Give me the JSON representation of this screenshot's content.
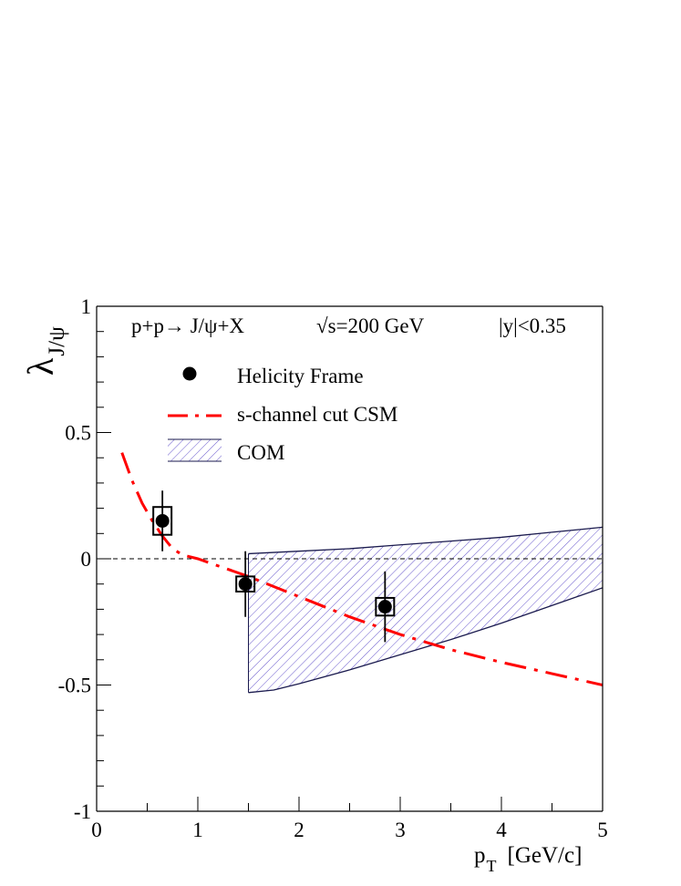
{
  "chart_data": {
    "type": "scatter",
    "title": "",
    "xlabel": {
      "main": "p",
      "sub": "T",
      "unit": "[GeV/c]"
    },
    "ylabel": {
      "main": "λ",
      "sub": "J/ψ"
    },
    "xlim": [
      0,
      5
    ],
    "ylim": [
      -1,
      1
    ],
    "x_ticks": [
      0,
      1,
      2,
      3,
      4,
      5
    ],
    "y_ticks": [
      1,
      0.5,
      0,
      -0.5,
      -1
    ],
    "x_tick_labels": [
      "0",
      "1",
      "2",
      "3",
      "4",
      "5"
    ],
    "y_tick_labels": [
      "1",
      "0.5",
      "0",
      "-0.5",
      "-1"
    ],
    "grid": false,
    "annotation": {
      "reaction": "p+p→ J/ψ+X",
      "energy": "√s=200 GeV",
      "rapidity": "|y|<0.35"
    },
    "legend": {
      "placement": "top-left",
      "entries": [
        {
          "label": "Helicity Frame",
          "marker": "filled-circle"
        },
        {
          "label": "s-channel cut CSM",
          "marker": "dash-dot-line"
        },
        {
          "label": "COM",
          "marker": "hatched-band"
        }
      ]
    },
    "series": [
      {
        "name": "Helicity Frame",
        "kind": "points",
        "color": "#000000",
        "x": [
          0.65,
          1.47,
          2.85
        ],
        "y": [
          0.15,
          -0.1,
          -0.19
        ],
        "stat_err": [
          0.12,
          0.13,
          0.14
        ],
        "sys_box": {
          "half_width": 0.09,
          "half_height": [
            0.055,
            0.03,
            0.035
          ]
        }
      },
      {
        "name": "s-channel cut CSM",
        "kind": "line",
        "style": "dash-dot",
        "color": "#ff0000",
        "x": [
          0.25,
          0.35,
          0.45,
          0.55,
          0.65,
          0.75,
          0.85,
          1.0,
          1.25,
          1.5,
          1.75,
          2.0,
          2.5,
          3.0,
          3.5,
          4.0,
          4.5,
          5.0
        ],
        "y": [
          0.42,
          0.31,
          0.22,
          0.15,
          0.09,
          0.04,
          0.015,
          0.0,
          -0.035,
          -0.07,
          -0.11,
          -0.15,
          -0.23,
          -0.3,
          -0.36,
          -0.41,
          -0.455,
          -0.5
        ]
      },
      {
        "name": "COM",
        "kind": "band",
        "fill": "hatched",
        "color": "#6a5acd",
        "edge_color": "#1a1a4e",
        "x": [
          1.5,
          1.75,
          2.0,
          2.5,
          3.0,
          3.5,
          4.0,
          4.5,
          5.0
        ],
        "upper": [
          0.02,
          0.025,
          0.03,
          0.04,
          0.055,
          0.07,
          0.085,
          0.105,
          0.125
        ],
        "lower": [
          -0.53,
          -0.52,
          -0.495,
          -0.44,
          -0.38,
          -0.32,
          -0.255,
          -0.185,
          -0.115
        ]
      }
    ],
    "reference_line": {
      "y": 0,
      "style": "dashed",
      "color": "#000000"
    }
  }
}
